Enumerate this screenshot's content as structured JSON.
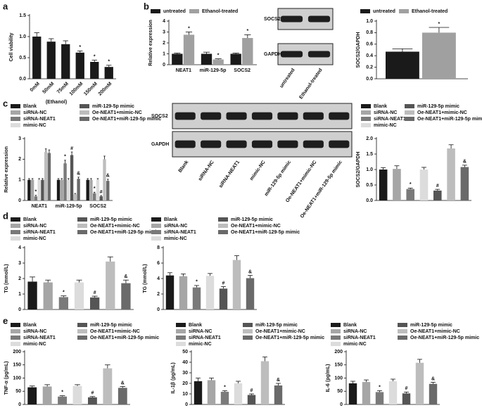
{
  "chart_data": [
    {
      "type": "bar",
      "panel": "a",
      "ylabel": "Cell viability",
      "xlabel": "(Ethanol)",
      "categories": [
        "0mM",
        "50mM",
        "75mM",
        "100mM",
        "150mM",
        "200mM"
      ],
      "values": [
        1.0,
        0.88,
        0.82,
        0.62,
        0.4,
        0.28
      ],
      "errors": [
        0.09,
        0.07,
        0.08,
        0.04,
        0.04,
        0.04
      ],
      "annotations": [
        null,
        null,
        null,
        "*",
        "*",
        "*"
      ],
      "color": "#1a1a1a",
      "ylim": [
        0,
        1.5
      ],
      "yticks": [
        {
          "value": 0,
          "label": "0.0"
        },
        {
          "value": 0.5,
          "label": "0.5"
        },
        {
          "value": 1,
          "label": "1.0"
        },
        {
          "value": 1.5,
          "label": "1.5"
        }
      ]
    },
    {
      "type": "bar",
      "panel": "b",
      "ylabel": "Relative expression",
      "categories": [
        "NEAT1",
        "miR-129-5p",
        "SOCS2"
      ],
      "series": [
        {
          "name": "untreated",
          "color": "#1a1a1a",
          "values": [
            1.0,
            1.0,
            1.0
          ],
          "errors": [
            0.07,
            0.15,
            0.07
          ]
        },
        {
          "name": "Ethanol-treated",
          "color": "#a0a0a0",
          "values": [
            2.75,
            0.48,
            2.45
          ],
          "errors": [
            0.25,
            0.06,
            0.3
          ],
          "annotations": [
            "*",
            "*",
            "*"
          ]
        }
      ],
      "ylim": [
        0,
        4
      ],
      "yticks": [
        0,
        1,
        2,
        3,
        4
      ]
    },
    {
      "type": "blot",
      "rows": [
        "SOCS2",
        "GAPDH"
      ],
      "lanes": [
        "untreated",
        "Ethanol-treated"
      ]
    },
    {
      "type": "bar",
      "ylabel": "SOCS2/GAPDH",
      "categories": [
        "untreated"
      ],
      "series": [
        {
          "name": "untreated",
          "color": "#1a1a1a",
          "values": [
            0.47
          ],
          "errors": [
            0.05
          ]
        },
        {
          "name": "Ethanol-treated",
          "color": "#a0a0a0",
          "values": [
            0.8
          ],
          "errors": [
            0.09
          ],
          "annotations": [
            "*"
          ]
        }
      ],
      "ylim": [
        0,
        1.0
      ],
      "yticks": [
        {
          "value": 0,
          "label": "0.0"
        },
        {
          "value": 0.2,
          "label": "0.2"
        },
        {
          "value": 0.4,
          "label": "0.4"
        },
        {
          "value": 0.6,
          "label": "0.6"
        },
        {
          "value": 0.8,
          "label": "0.8"
        },
        {
          "value": 1,
          "label": "1.0"
        }
      ]
    },
    {
      "type": "bar",
      "panel": "c",
      "ylabel": "Relative expression",
      "categories": [
        "NEAT1",
        "miR-129-5p",
        "SOCS2"
      ],
      "series": [
        {
          "name": "Blank",
          "color": "#1a1a1a",
          "values": [
            1.0,
            1.0,
            1.0
          ],
          "errors": [
            0.06,
            0.06,
            0.06
          ]
        },
        {
          "name": "siRNA-NC",
          "color": "#a6a6a6",
          "values": [
            1.0,
            1.0,
            1.0
          ],
          "errors": [
            0.06,
            0.06,
            0.06
          ]
        },
        {
          "name": "siRNA-NEAT1",
          "color": "#7a7a7a",
          "values": [
            0.2,
            1.8,
            0.35
          ],
          "errors": [
            0.05,
            0.15,
            0.05
          ],
          "annotations": [
            "*",
            "*",
            "*"
          ]
        },
        {
          "name": "mimic-NC",
          "color": "#dcdcdc",
          "values": [
            1.0,
            1.0,
            1.0
          ],
          "errors": [
            0.06,
            0.06,
            0.06
          ]
        },
        {
          "name": "miR-129-5p mimic",
          "color": "#555555",
          "values": [
            1.0,
            2.2,
            0.2
          ],
          "errors": [
            0.06,
            0.15,
            0.04
          ],
          "annotations": [
            null,
            "#",
            "#"
          ]
        },
        {
          "name": "Oe-NEAT1+mimic-NC",
          "color": "#bdbdbd",
          "values": [
            2.35,
            0.3,
            2.0
          ],
          "errors": [
            0.15,
            0.04,
            0.15
          ]
        },
        {
          "name": "Oe-NEAT1+miR-129-5p mimic",
          "color": "#6a6a6a",
          "values": [
            2.3,
            1.05,
            0.95
          ],
          "errors": [
            0.15,
            0.08,
            0.08
          ],
          "annotations": [
            null,
            "&",
            "&"
          ]
        }
      ],
      "ylim": [
        0,
        3
      ],
      "yticks": [
        0,
        1,
        2,
        3
      ]
    },
    {
      "type": "blot",
      "rows": [
        "SOCS2",
        "GAPDH"
      ],
      "lanes": [
        "Blank",
        "siRNA-NC",
        "siRNA-NEAT1",
        "mimic-NC",
        "miR-129-5p mimic",
        "Oe-NEAT1+mimic-NC",
        "Oe-NEAT1+miR-129-5p mimic"
      ]
    },
    {
      "type": "bar",
      "ylabel": "SOCS2/GAPDH",
      "categories": [
        "Blank",
        "siRNA-NC",
        "siRNA-NEAT1",
        "mimic-NC",
        "miR-129-5p mimic",
        "Oe-NEAT1+mimic-NC",
        "Oe-NEAT1+miR-129-5p mimic"
      ],
      "colors": [
        "#1a1a1a",
        "#a6a6a6",
        "#7a7a7a",
        "#dcdcdc",
        "#555555",
        "#bdbdbd",
        "#6a6a6a"
      ],
      "values": [
        1.0,
        1.02,
        0.37,
        1.0,
        0.32,
        1.68,
        1.08
      ],
      "errors": [
        0.06,
        0.1,
        0.03,
        0.07,
        0.04,
        0.12,
        0.06
      ],
      "annotations": [
        null,
        null,
        "*",
        null,
        "#",
        null,
        "&"
      ],
      "ylim": [
        0,
        2.0
      ],
      "yticks": [
        {
          "value": 0,
          "label": "0.0"
        },
        {
          "value": 0.5,
          "label": "0.5"
        },
        {
          "value": 1,
          "label": "1.0"
        },
        {
          "value": 1.5,
          "label": "1.5"
        },
        {
          "value": 2,
          "label": "2.0"
        }
      ]
    },
    {
      "type": "bar",
      "panel": "d",
      "ylabel": "TG (mmol/L)",
      "categories": [
        "Blank",
        "siRNA-NC",
        "siRNA-NEAT1",
        "mimic-NC",
        "miR-129-5p mimic",
        "Oe-NEAT1+mimic-NC",
        "Oe-NEAT1+miR-129-5p mimic"
      ],
      "colors": [
        "#1a1a1a",
        "#a6a6a6",
        "#7a7a7a",
        "#dcdcdc",
        "#555555",
        "#bdbdbd",
        "#6a6a6a"
      ],
      "values": [
        1.8,
        1.75,
        0.8,
        1.75,
        0.78,
        3.1,
        1.7
      ],
      "errors": [
        0.3,
        0.15,
        0.08,
        0.15,
        0.08,
        0.3,
        0.2
      ],
      "annotations": [
        null,
        null,
        "*",
        null,
        "#",
        null,
        "&"
      ],
      "ylim": [
        0,
        4
      ],
      "yticks": [
        0,
        1,
        2,
        3,
        4
      ]
    },
    {
      "type": "bar",
      "ylabel": "TG (mmol/L)",
      "categories": [
        "Blank",
        "siRNA-NC",
        "siRNA-NEAT1",
        "mimic-NC",
        "miR-129-5p mimic",
        "Oe-NEAT1+mimic-NC",
        "Oe-NEAT1+miR-129-5p mimic"
      ],
      "colors": [
        "#1a1a1a",
        "#a6a6a6",
        "#7a7a7a",
        "#dcdcdc",
        "#555555",
        "#bdbdbd",
        "#6a6a6a"
      ],
      "values": [
        4.4,
        4.3,
        2.85,
        4.35,
        2.7,
        6.4,
        4.05
      ],
      "errors": [
        0.35,
        0.3,
        0.25,
        0.3,
        0.25,
        0.55,
        0.35
      ],
      "annotations": [
        null,
        null,
        "*",
        null,
        "#",
        null,
        "&"
      ],
      "ylim": [
        0,
        8
      ],
      "yticks": [
        0,
        2,
        4,
        6,
        8
      ]
    },
    {
      "type": "bar",
      "panel": "e",
      "ylabel": "TNF-α (pg/mL)",
      "categories": [
        "Blank",
        "siRNA-NC",
        "siRNA-NEAT1",
        "mimic-NC",
        "miR-129-5p mimic",
        "Oe-NEAT1+mimic-NC",
        "Oe-NEAT1+miR-129-5p mimic"
      ],
      "colors": [
        "#1a1a1a",
        "#a6a6a6",
        "#7a7a7a",
        "#dcdcdc",
        "#555555",
        "#bdbdbd",
        "#6a6a6a"
      ],
      "values": [
        65,
        68,
        30,
        70,
        27,
        137,
        63
      ],
      "errors": [
        5,
        7,
        3,
        5,
        3,
        13,
        5
      ],
      "annotations": [
        null,
        null,
        "*",
        null,
        "#",
        null,
        "&"
      ],
      "ylim": [
        0,
        200
      ],
      "yticks": [
        0,
        50,
        100,
        150,
        200
      ]
    },
    {
      "type": "bar",
      "ylabel": "IL-1β (pg/mL)",
      "categories": [
        "Blank",
        "siRNA-NC",
        "siRNA-NEAT1",
        "mimic-NC",
        "miR-129-5p mimic",
        "Oe-NEAT1+mimic-NC",
        "Oe-NEAT1+miR-129-5p mimic"
      ],
      "colors": [
        "#1a1a1a",
        "#a6a6a6",
        "#7a7a7a",
        "#dcdcdc",
        "#555555",
        "#bdbdbd",
        "#6a6a6a"
      ],
      "values": [
        22,
        23,
        12,
        20,
        9,
        41,
        18
      ],
      "errors": [
        3,
        2,
        1,
        2,
        1,
        4,
        2
      ],
      "annotations": [
        null,
        null,
        "*",
        null,
        "#",
        null,
        "&"
      ],
      "ylim": [
        0,
        50
      ],
      "yticks": [
        0,
        10,
        20,
        30,
        40,
        50
      ]
    },
    {
      "type": "bar",
      "ylabel": "IL-6 (pg/mL)",
      "categories": [
        "Blank",
        "siRNA-NC",
        "siRNA-NEAT1",
        "mimic-NC",
        "miR-129-5p mimic",
        "Oe-NEAT1+mimic-NC",
        "Oe-NEAT1+miR-129-5p mimic"
      ],
      "colors": [
        "#1a1a1a",
        "#a6a6a6",
        "#7a7a7a",
        "#dcdcdc",
        "#555555",
        "#bdbdbd",
        "#6a6a6a"
      ],
      "values": [
        80,
        85,
        47,
        88,
        42,
        158,
        78
      ],
      "errors": [
        8,
        8,
        5,
        8,
        5,
        13,
        6
      ],
      "annotations": [
        null,
        null,
        "*",
        null,
        "#",
        null,
        "&"
      ],
      "ylim": [
        0,
        200
      ],
      "yticks": [
        0,
        50,
        100,
        150,
        200
      ]
    }
  ]
}
